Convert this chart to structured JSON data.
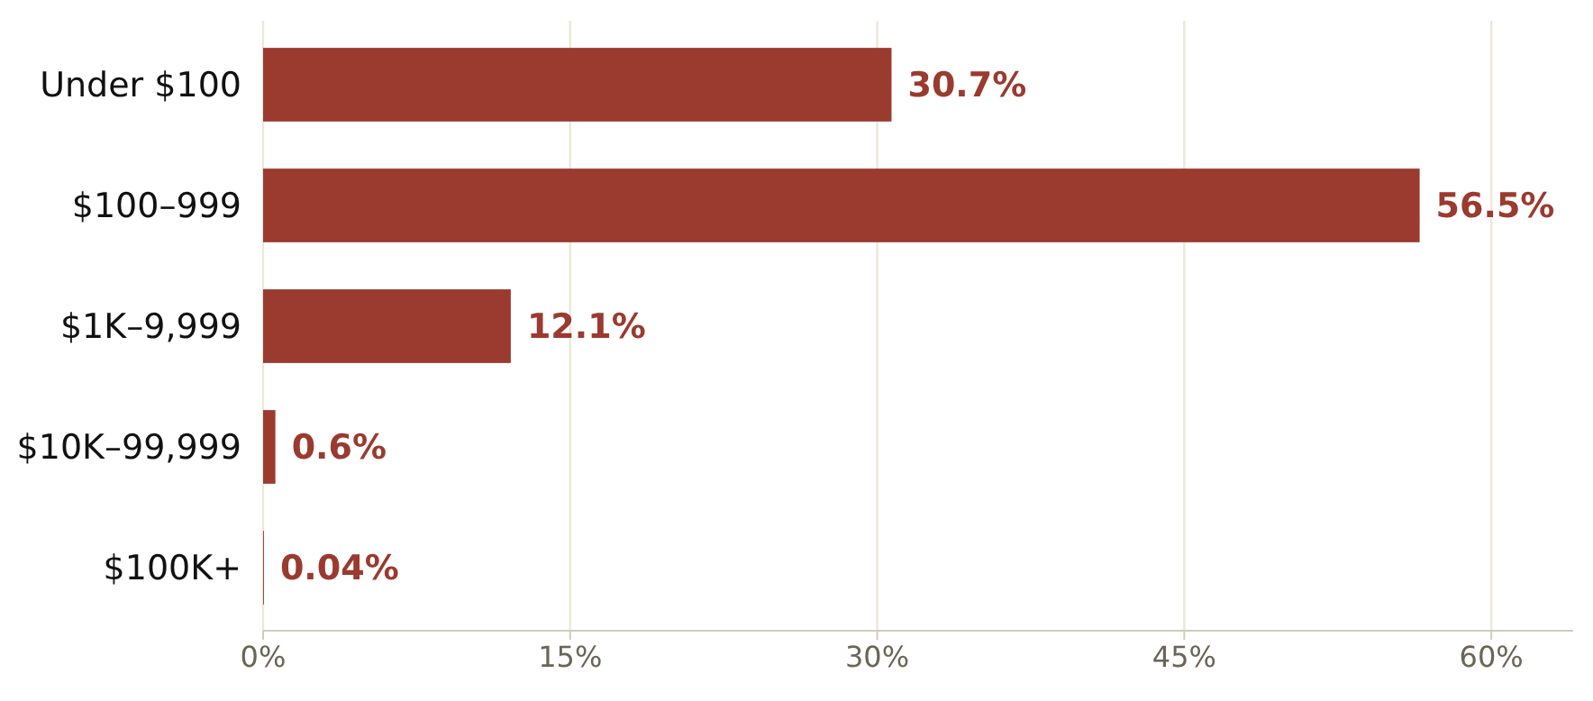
{
  "chart_data": {
    "type": "bar",
    "orientation": "horizontal",
    "categories": [
      "Under $100",
      "$100–999",
      "$1K–9,999",
      "$10K–99,999",
      "$100K+"
    ],
    "values": [
      30.7,
      56.5,
      12.1,
      0.6,
      0.04
    ],
    "value_labels": [
      "30.7%",
      "56.5%",
      "12.1%",
      "0.6%",
      "0.04%"
    ],
    "color": "#9b3a2f",
    "xlim": [
      0,
      64
    ],
    "xticks": [
      {
        "value": 0,
        "label": "0%"
      },
      {
        "value": 15,
        "label": "15%"
      },
      {
        "value": 30,
        "label": "30%"
      },
      {
        "value": 45,
        "label": "45%"
      },
      {
        "value": 60,
        "label": "60%"
      }
    ],
    "grid": "x"
  }
}
